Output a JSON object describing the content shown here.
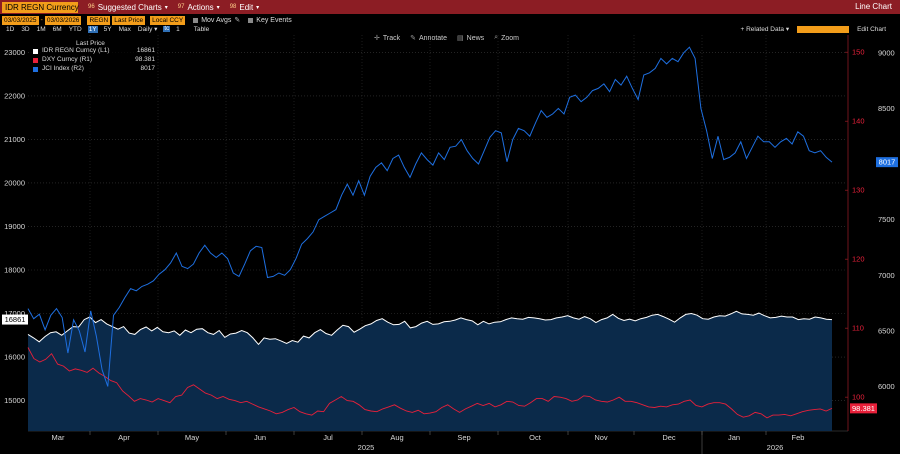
{
  "toolbar": {
    "ticker": "IDR REGN Currency",
    "suggested": {
      "num": "96",
      "label": "Suggested Charts"
    },
    "actions": {
      "num": "97",
      "label": "Actions"
    },
    "edit": {
      "num": "98",
      "label": "Edit"
    },
    "right_title": "Line Chart"
  },
  "params": {
    "start_date": "03/03/2025",
    "end_date": "03/03/2026",
    "field1": "REGN",
    "field2": "Last Price",
    "field3": "Local CCY",
    "mov_avg": "Mov Avgs",
    "key_events": "Key Events"
  },
  "ranges": {
    "items": [
      "1D",
      "3D",
      "1M",
      "6M",
      "YTD",
      "1Y",
      "5Y",
      "Max"
    ],
    "selected": "1Y",
    "period": "Daily",
    "cc": "1",
    "table": "Table",
    "related": "Related Data",
    "edit_chart": "Edit Chart"
  },
  "chart_tools": {
    "track": "Track",
    "annotate": "Annotate",
    "news": "News",
    "zoom": "Zoom"
  },
  "legend": {
    "title": "Last Price",
    "rows": [
      {
        "name": "IDR REGN Curncy  (L1)",
        "value": "16861",
        "color": "#ffffff"
      },
      {
        "name": "DXY Curncy  (R1)",
        "value": "98.381",
        "color": "#e8203a"
      },
      {
        "name": "JCI Index  (R2)",
        "value": "8017",
        "color": "#1e6fe0"
      }
    ]
  },
  "chart_data": {
    "type": "line",
    "x_labels": [
      "Mar",
      "Apr",
      "May",
      "Jun",
      "Jul",
      "Aug",
      "Sep",
      "Oct",
      "Nov",
      "Dec",
      "Jan",
      "Feb"
    ],
    "year_labels": [
      "2025",
      "2026"
    ],
    "left_axis": {
      "ticks": [
        15000,
        16000,
        17000,
        18000,
        19000,
        20000,
        21000,
        22000,
        23000
      ],
      "min": 14300,
      "max": 23400
    },
    "right1_axis": {
      "ticks": [
        100,
        110,
        120,
        130,
        140,
        150
      ],
      "min": 95.1,
      "max": 152.5
    },
    "right2_axis": {
      "ticks": [
        6000,
        6500,
        7000,
        7500,
        8000,
        8500,
        9000
      ],
      "min": 5600,
      "max": 9160
    },
    "last_values": {
      "idr": "16861",
      "dxy": "98.381",
      "jci": "8017"
    },
    "series": [
      {
        "name": "IDR REGN Curncy (L1)",
        "axis": "left",
        "color": "#ffffff",
        "fill": "#0b2a4a",
        "values": [
          16520,
          16440,
          16350,
          16470,
          16560,
          16580,
          16500,
          16600,
          16700,
          16690,
          16860,
          16920,
          16790,
          16860,
          16760,
          16700,
          16640,
          16700,
          16550,
          16520,
          16630,
          16690,
          16600,
          16680,
          16580,
          16560,
          16600,
          16500,
          16620,
          16560,
          16640,
          16650,
          16560,
          16520,
          16610,
          16450,
          16530,
          16550,
          16610,
          16560,
          16440,
          16290,
          16440,
          16410,
          16420,
          16370,
          16310,
          16380,
          16340,
          16480,
          16440,
          16560,
          16630,
          16540,
          16500,
          16620,
          16730,
          16700,
          16570,
          16640,
          16720,
          16760,
          16840,
          16880,
          16800,
          16740,
          16750,
          16820,
          16670,
          16700,
          16780,
          16820,
          16750,
          16760,
          16810,
          16820,
          16850,
          16900,
          16860,
          16830,
          16740,
          16820,
          16760,
          16800,
          16810,
          16860,
          16900,
          16880,
          16870,
          16910,
          16900,
          16880,
          16850,
          16860,
          16900,
          16920,
          16950,
          16900,
          16870,
          16930,
          16880,
          16790,
          16860,
          16900,
          16980,
          16890,
          16840,
          16870,
          16830,
          16880,
          16910,
          16960,
          16980,
          16930,
          16870,
          16800,
          16900,
          16980,
          17000,
          16960,
          16880,
          16870,
          16920,
          16950,
          16940,
          16990,
          17050,
          16990,
          16980,
          16960,
          17010,
          16950,
          16900,
          16910,
          16940,
          16920,
          16920,
          16860,
          16880,
          16870,
          16920,
          16900,
          16870,
          16861
        ]
      },
      {
        "name": "DXY Curncy (R1)",
        "axis": "right1",
        "color": "#e8203a",
        "values": [
          107.2,
          105.6,
          105.1,
          105.5,
          106.3,
          104.8,
          104.5,
          103.8,
          104.1,
          103.9,
          103.6,
          104.2,
          103.5,
          103.0,
          102.4,
          102.1,
          100.9,
          100.2,
          99.4,
          99.8,
          99.6,
          99.3,
          99.8,
          99.5,
          99.2,
          100.1,
          100.3,
          101.4,
          101.8,
          101.2,
          100.6,
          100.3,
          99.8,
          100.1,
          99.7,
          99.5,
          99.2,
          99.4,
          99.0,
          98.6,
          98.3,
          98.0,
          97.6,
          97.8,
          98.2,
          98.5,
          97.9,
          97.6,
          97.4,
          98.0,
          97.9,
          99.1,
          99.6,
          100.1,
          99.5,
          99.4,
          98.9,
          98.2,
          98.0,
          97.9,
          98.3,
          98.6,
          98.9,
          98.4,
          98.0,
          97.8,
          98.1,
          97.6,
          97.7,
          97.9,
          98.5,
          98.9,
          98.3,
          97.8,
          98.3,
          98.7,
          99.1,
          98.8,
          99.1,
          98.6,
          98.9,
          99.4,
          99.3,
          98.8,
          98.7,
          99.2,
          99.8,
          99.8,
          99.4,
          100.1,
          100.0,
          99.8,
          99.4,
          99.6,
          100.2,
          100.1,
          99.6,
          99.4,
          99.3,
          99.6,
          100.0,
          99.4,
          99.4,
          99.2,
          98.9,
          98.6,
          98.5,
          98.7,
          98.6,
          98.9,
          99.0,
          99.4,
          99.6,
          98.8,
          98.6,
          99.0,
          99.2,
          99.2,
          99.0,
          98.3,
          97.5,
          97.1,
          97.3,
          97.8,
          97.6,
          97.0,
          97.4,
          97.4,
          97.5,
          97.3,
          97.6,
          97.9,
          98.1,
          98.2,
          98.3,
          98.0,
          98.381
        ]
      },
      {
        "name": "JCI Index (R2)",
        "axis": "right2",
        "color": "#1e6fe0",
        "values": [
          6700,
          6610,
          6650,
          6510,
          6640,
          6700,
          6620,
          6300,
          6600,
          6500,
          6310,
          6680,
          6450,
          6150,
          6000,
          6640,
          6710,
          6800,
          6880,
          6860,
          6900,
          6920,
          6950,
          7010,
          7050,
          7110,
          7200,
          7080,
          7060,
          7100,
          7200,
          7270,
          7200,
          7160,
          7200,
          7150,
          7020,
          6990,
          7100,
          7220,
          7260,
          7250,
          6980,
          6990,
          7020,
          7000,
          7050,
          7150,
          7280,
          7330,
          7390,
          7500,
          7530,
          7560,
          7590,
          7720,
          7820,
          7720,
          7850,
          7720,
          7890,
          7970,
          8010,
          7940,
          8050,
          8080,
          7970,
          7880,
          8000,
          8100,
          8040,
          7990,
          8100,
          8040,
          8150,
          8160,
          8220,
          8120,
          8050,
          8000,
          8120,
          8240,
          8300,
          8280,
          8020,
          8220,
          8320,
          8300,
          8250,
          8370,
          8480,
          8420,
          8450,
          8500,
          8450,
          8600,
          8620,
          8560,
          8600,
          8660,
          8680,
          8720,
          8650,
          8760,
          8710,
          8790,
          8680,
          8580,
          8800,
          8820,
          8860,
          8950,
          8900,
          8950,
          8920,
          9000,
          9050,
          8950,
          8500,
          8300,
          8050,
          8250,
          8040,
          8060,
          8100,
          8200,
          8050,
          8150,
          8250,
          8200,
          8200,
          8150,
          8200,
          8230,
          8180,
          8290,
          8250,
          8120,
          8100,
          8120,
          8060,
          8017
        ]
      }
    ]
  }
}
